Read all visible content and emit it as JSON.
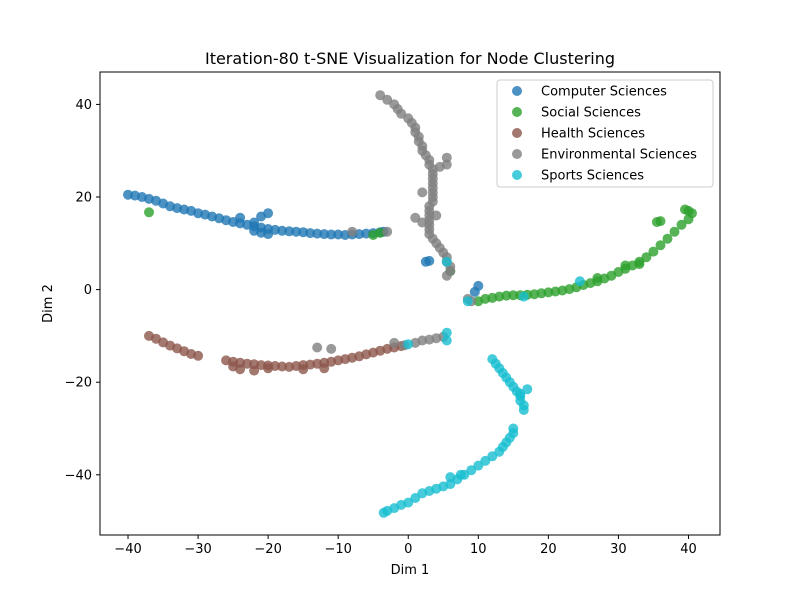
{
  "chart_data": {
    "type": "scatter",
    "title": "Iteration-80 t-SNE Visualization for Node Clustering",
    "xlabel": "Dim 1",
    "ylabel": "Dim 2",
    "xlim": [
      -44,
      44.5
    ],
    "ylim": [
      -53,
      47
    ],
    "xticks": [
      -40,
      -30,
      -20,
      -10,
      0,
      10,
      20,
      30,
      40
    ],
    "yticks": [
      -40,
      -20,
      0,
      20,
      40
    ],
    "xtick_labels": [
      "−40",
      "−30",
      "−20",
      "−10",
      "0",
      "10",
      "20",
      "30",
      "40"
    ],
    "ytick_labels": [
      "−40",
      "−20",
      "0",
      "20",
      "40"
    ],
    "grid": false,
    "legend_position": "top-right",
    "series": [
      {
        "name": "Computer Sciences",
        "color": "#1f77b4",
        "points": [
          [
            -40,
            20.5
          ],
          [
            -39,
            20.3
          ],
          [
            -38,
            20.0
          ],
          [
            -37,
            19.6
          ],
          [
            -36,
            19.2
          ],
          [
            -35,
            18.6
          ],
          [
            -34,
            18.0
          ],
          [
            -33,
            17.6
          ],
          [
            -32,
            17.3
          ],
          [
            -31,
            17.0
          ],
          [
            -30,
            16.5
          ],
          [
            -29,
            16.2
          ],
          [
            -28,
            15.8
          ],
          [
            -27,
            15.4
          ],
          [
            -26,
            15.0
          ],
          [
            -25,
            14.6
          ],
          [
            -24,
            14.3
          ],
          [
            -23,
            14.0
          ],
          [
            -22,
            13.7
          ],
          [
            -21,
            13.4
          ],
          [
            -20,
            13.1
          ],
          [
            -19,
            12.9
          ],
          [
            -18,
            12.7
          ],
          [
            -17,
            12.6
          ],
          [
            -16,
            12.5
          ],
          [
            -15,
            12.4
          ],
          [
            -14,
            12.2
          ],
          [
            -13,
            12.1
          ],
          [
            -12,
            12.0
          ],
          [
            -11,
            11.9
          ],
          [
            -10,
            11.9
          ],
          [
            -9,
            11.8
          ],
          [
            -8,
            11.9
          ],
          [
            -7,
            12.0
          ],
          [
            -6,
            12.1
          ],
          [
            -5,
            12.2
          ],
          [
            -4,
            12.4
          ],
          [
            -3.5,
            12.5
          ],
          [
            -24,
            15.5
          ],
          [
            -22,
            14.5
          ],
          [
            -21,
            15.8
          ],
          [
            -20,
            16.5
          ],
          [
            -21,
            12.3
          ],
          [
            -22,
            12.7
          ],
          [
            -20,
            12.0
          ],
          [
            3,
            6.2
          ],
          [
            2.5,
            6.0
          ],
          [
            10,
            0.8
          ],
          [
            9.5,
            -0.5
          ]
        ]
      },
      {
        "name": "Social Sciences",
        "color": "#2ca02c",
        "points": [
          [
            10,
            -2.5
          ],
          [
            11,
            -2.0
          ],
          [
            12,
            -1.8
          ],
          [
            13,
            -1.5
          ],
          [
            14,
            -1.3
          ],
          [
            15,
            -1.2
          ],
          [
            16,
            -1.2
          ],
          [
            17,
            -1.1
          ],
          [
            18,
            -1.0
          ],
          [
            19,
            -0.8
          ],
          [
            20,
            -0.6
          ],
          [
            21,
            -0.4
          ],
          [
            22,
            -0.2
          ],
          [
            23,
            0.1
          ],
          [
            24,
            0.5
          ],
          [
            25,
            1.0
          ],
          [
            26,
            1.4
          ],
          [
            27,
            1.8
          ],
          [
            28,
            2.4
          ],
          [
            29,
            3.0
          ],
          [
            30,
            3.8
          ],
          [
            31,
            4.5
          ],
          [
            32,
            5.2
          ],
          [
            33,
            6.0
          ],
          [
            34,
            7.0
          ],
          [
            35,
            8.2
          ],
          [
            36,
            9.6
          ],
          [
            37,
            11.0
          ],
          [
            38,
            12.5
          ],
          [
            39,
            14.0
          ],
          [
            40,
            15.2
          ],
          [
            40.5,
            16.5
          ],
          [
            40,
            17.0
          ],
          [
            39.5,
            17.3
          ],
          [
            36,
            14.8
          ],
          [
            35.5,
            14.6
          ],
          [
            33,
            5.5
          ],
          [
            31,
            5.2
          ],
          [
            27,
            2.5
          ],
          [
            -37,
            16.7
          ],
          [
            -5,
            11.8
          ],
          [
            -4,
            12.3
          ],
          [
            6,
            4.0
          ]
        ]
      },
      {
        "name": "Health Sciences",
        "color": "#8c564b",
        "points": [
          [
            -37,
            -10.0
          ],
          [
            -36,
            -10.6
          ],
          [
            -35,
            -11.4
          ],
          [
            -34,
            -12.1
          ],
          [
            -33,
            -12.7
          ],
          [
            -32,
            -13.3
          ],
          [
            -31,
            -13.9
          ],
          [
            -30,
            -14.3
          ],
          [
            -26,
            -15.3
          ],
          [
            -25,
            -15.6
          ],
          [
            -24,
            -15.8
          ],
          [
            -23,
            -16.0
          ],
          [
            -22,
            -16.1
          ],
          [
            -21,
            -16.3
          ],
          [
            -20,
            -16.4
          ],
          [
            -19,
            -16.5
          ],
          [
            -18,
            -16.6
          ],
          [
            -17,
            -16.7
          ],
          [
            -16,
            -16.5
          ],
          [
            -15,
            -16.3
          ],
          [
            -14,
            -16.2
          ],
          [
            -13,
            -16.0
          ],
          [
            -12,
            -15.8
          ],
          [
            -11,
            -15.6
          ],
          [
            -10,
            -15.3
          ],
          [
            -9,
            -15.0
          ],
          [
            -8,
            -14.7
          ],
          [
            -7,
            -14.4
          ],
          [
            -6,
            -14.0
          ],
          [
            -5,
            -13.6
          ],
          [
            -4,
            -13.2
          ],
          [
            -3,
            -12.8
          ],
          [
            -2,
            -12.5
          ],
          [
            -1,
            -12.2
          ],
          [
            -24,
            -17.2
          ],
          [
            -22,
            -17.5
          ],
          [
            -20,
            -17.0
          ],
          [
            -25,
            -16.6
          ],
          [
            -15,
            -17.2
          ],
          [
            -12,
            -17.0
          ]
        ]
      },
      {
        "name": "Environmental Sciences",
        "color": "#7f7f7f",
        "points": [
          [
            -4,
            42.0
          ],
          [
            -3,
            41.0
          ],
          [
            -2,
            40.0
          ],
          [
            -1.5,
            39.0
          ],
          [
            -1,
            38.0
          ],
          [
            0,
            37.0
          ],
          [
            0.5,
            36.0
          ],
          [
            1,
            35.0
          ],
          [
            1,
            34.0
          ],
          [
            1.5,
            33.0
          ],
          [
            1.5,
            32.0
          ],
          [
            2,
            31.0
          ],
          [
            2,
            30.0
          ],
          [
            2.5,
            29.0
          ],
          [
            3,
            28.0
          ],
          [
            3,
            27.0
          ],
          [
            3.5,
            26.0
          ],
          [
            3.5,
            25.0
          ],
          [
            3.5,
            24.0
          ],
          [
            3.5,
            23.0
          ],
          [
            3.5,
            22.0
          ],
          [
            3.5,
            21.0
          ],
          [
            3.5,
            20.0
          ],
          [
            3.5,
            19.0
          ],
          [
            3,
            18.0
          ],
          [
            3,
            17.0
          ],
          [
            3,
            16.0
          ],
          [
            3,
            15.0
          ],
          [
            3,
            14.0
          ],
          [
            3,
            13.0
          ],
          [
            3,
            12.0
          ],
          [
            3.5,
            11.0
          ],
          [
            4,
            10.0
          ],
          [
            4.5,
            9.0
          ],
          [
            5,
            8.0
          ],
          [
            5.5,
            7.0
          ],
          [
            5.5,
            6.0
          ],
          [
            6,
            5.0
          ],
          [
            6,
            4.0
          ],
          [
            5.5,
            3.0
          ],
          [
            5.5,
            28.5
          ],
          [
            5.5,
            27.0
          ],
          [
            4.5,
            26.5
          ],
          [
            2,
            21.0
          ],
          [
            1,
            15.5
          ],
          [
            2,
            14.5
          ],
          [
            4,
            16.0
          ],
          [
            -3,
            12.5
          ],
          [
            -8,
            12.5
          ],
          [
            -11,
            -12.8
          ],
          [
            -13,
            -12.5
          ],
          [
            -2,
            -11.5
          ],
          [
            -0.5,
            -12.0
          ],
          [
            1,
            -11.5
          ],
          [
            2,
            -11.0
          ],
          [
            3,
            -10.8
          ],
          [
            4,
            -10.5
          ],
          [
            5,
            -10.2
          ],
          [
            8.5,
            -2.0
          ],
          [
            9,
            -2.5
          ]
        ]
      },
      {
        "name": "Sports Sciences",
        "color": "#17becf",
        "points": [
          [
            12,
            -15.0
          ],
          [
            12.5,
            -16.0
          ],
          [
            13,
            -17.0
          ],
          [
            13.5,
            -18.0
          ],
          [
            14,
            -19.0
          ],
          [
            14.5,
            -20.0
          ],
          [
            15,
            -21.0
          ],
          [
            15.5,
            -22.0
          ],
          [
            16,
            -23.0
          ],
          [
            16,
            -24.0
          ],
          [
            16.5,
            -25.0
          ],
          [
            16.5,
            -26.0
          ],
          [
            16,
            -22.5
          ],
          [
            17,
            -21.5
          ],
          [
            15,
            -30.0
          ],
          [
            15,
            -31.0
          ],
          [
            14.5,
            -32.0
          ],
          [
            14,
            -33.0
          ],
          [
            13.5,
            -34.0
          ],
          [
            13,
            -35.0
          ],
          [
            12,
            -36.0
          ],
          [
            11,
            -37.0
          ],
          [
            10,
            -38.0
          ],
          [
            9,
            -39.0
          ],
          [
            8,
            -40.0
          ],
          [
            7,
            -41.0
          ],
          [
            6,
            -42.0
          ],
          [
            5,
            -42.5
          ],
          [
            4,
            -43.0
          ],
          [
            3,
            -43.5
          ],
          [
            2,
            -44.0
          ],
          [
            1,
            -45.0
          ],
          [
            0,
            -46.0
          ],
          [
            -1,
            -46.5
          ],
          [
            -2,
            -47.2
          ],
          [
            -3,
            -47.8
          ],
          [
            -3.5,
            -48.2
          ],
          [
            6,
            -40.5
          ],
          [
            7.5,
            -40.0
          ],
          [
            5.5,
            -9.3
          ],
          [
            5.5,
            -11.0
          ],
          [
            0,
            -11.8
          ],
          [
            24.5,
            1.8
          ],
          [
            16.5,
            -1.5
          ],
          [
            8.5,
            -2.5
          ],
          [
            5.5,
            6.0
          ]
        ]
      }
    ]
  }
}
